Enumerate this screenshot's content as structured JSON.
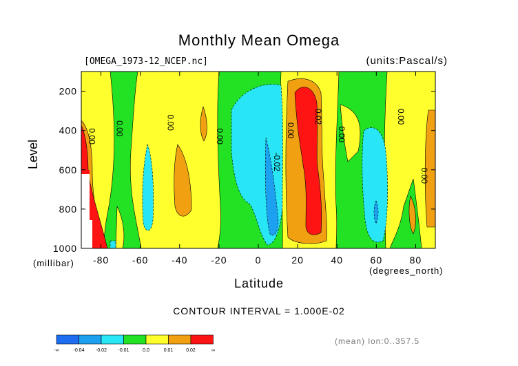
{
  "title": "Monthly Mean Omega",
  "file_label": "[OMEGA_1973-12_NCEP.nc]",
  "units_label": "(units:Pascal/s)",
  "contour_interval": "CONTOUR INTERVAL = 1.000E-02",
  "mean_label": "(mean) lon:0..357.5",
  "colors": {
    "lt_m004": "#1e6cf0",
    "m004_m002": "#1ea0f0",
    "m002_m001": "#28e6f5",
    "m001_0": "#23e123",
    "0_001": "#ffff2e",
    "001_002": "#f0a010",
    "gt_002": "#ff1414"
  },
  "chart_data": {
    "type": "heatmap",
    "title": "Monthly Mean Omega",
    "xlabel": "Latitude",
    "xunit": "(degrees_north)",
    "ylabel": "Level",
    "yunit": "(millibar)",
    "xlim": [
      -90,
      90
    ],
    "ylim": [
      1000,
      100
    ],
    "x_ticks": [
      -80,
      -60,
      -40,
      -20,
      0,
      20,
      40,
      60,
      80
    ],
    "y_ticks": [
      200,
      400,
      600,
      800,
      1000
    ],
    "contour_labels": [
      {
        "text": "0.00",
        "lat": -86,
        "lev": 430
      },
      {
        "text": "0.00",
        "lat": -72,
        "lev": 390
      },
      {
        "text": "0.00",
        "lat": -46,
        "lev": 360
      },
      {
        "text": "0.00",
        "lat": -21,
        "lev": 430
      },
      {
        "text": "0.00",
        "lat": 15,
        "lev": 400
      },
      {
        "text": "-0.02",
        "lat": 8,
        "lev": 560
      },
      {
        "text": "0.02",
        "lat": 29,
        "lev": 330
      },
      {
        "text": "0.00",
        "lat": 41,
        "lev": 420
      },
      {
        "text": "0.00",
        "lat": 71,
        "lev": 330
      },
      {
        "text": "0.00",
        "lat": 83,
        "lev": 630
      }
    ],
    "colorbar": {
      "tick_labels": [
        "-∞",
        "-0.04",
        "-0.02",
        "-0.01",
        "0.0",
        "0.01",
        "0.02",
        "∞"
      ]
    }
  }
}
